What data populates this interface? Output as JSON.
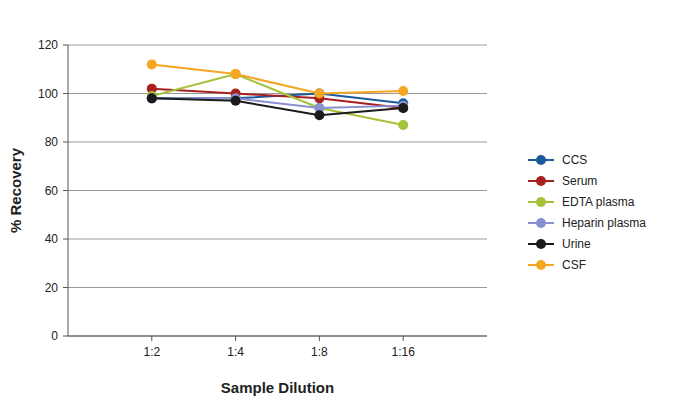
{
  "chart_data": {
    "type": "line",
    "x_label": "Sample Dilution",
    "y_label": "% Recovery",
    "categories": [
      "1:2",
      "1:4",
      "1:8",
      "1:16"
    ],
    "series": [
      {
        "name": "CCS",
        "color": "#1a5a9c",
        "values": [
          98,
          98,
          100,
          96
        ]
      },
      {
        "name": "Serum",
        "color": "#a8201f",
        "values": [
          102,
          100,
          98,
          94
        ]
      },
      {
        "name": "EDTA plasma",
        "color": "#a6c13a",
        "values": [
          99,
          108,
          94,
          87
        ]
      },
      {
        "name": "Heparin plasma",
        "color": "#8a8fd0",
        "values": [
          98,
          98,
          94,
          95
        ]
      },
      {
        "name": "Urine",
        "color": "#1b1b1b",
        "values": [
          98,
          97,
          91,
          94
        ]
      },
      {
        "name": "CSF",
        "color": "#f5a623",
        "values": [
          112,
          108,
          100,
          101
        ]
      }
    ],
    "ylim": [
      0,
      120
    ],
    "yticks": [
      0,
      20,
      40,
      60,
      80,
      100,
      120
    ],
    "grid": true,
    "legend": "right",
    "marker": "circle"
  }
}
